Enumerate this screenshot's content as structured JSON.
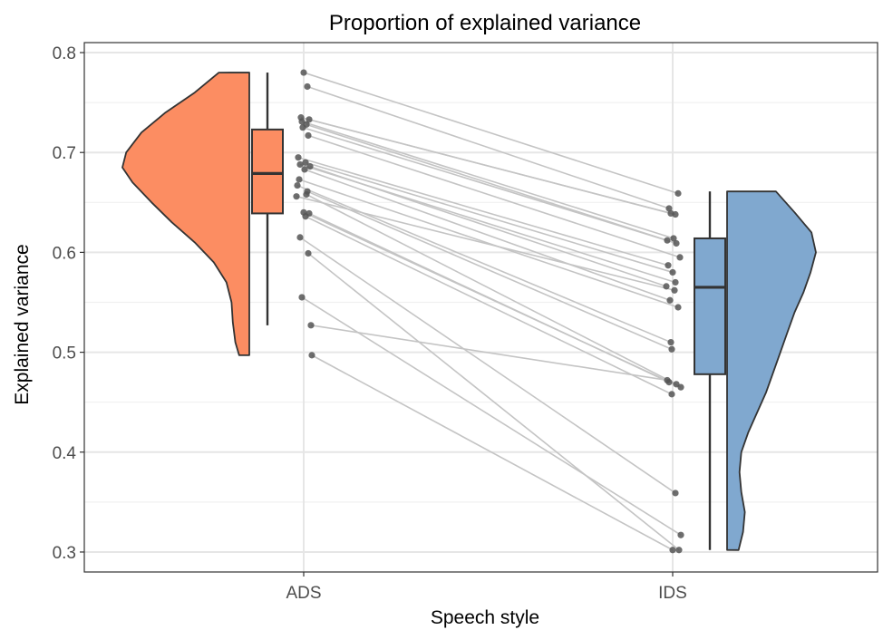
{
  "chart_data": {
    "type": "raincloud",
    "title": "Proportion of explained variance",
    "xlabel": "Speech style",
    "ylabel": "Explained variance",
    "categories": [
      "ADS",
      "IDS"
    ],
    "ylim": [
      0.28,
      0.81
    ],
    "yticks": [
      0.3,
      0.4,
      0.5,
      0.6,
      0.7,
      0.8
    ],
    "ytick_labels": [
      "0.3",
      "0.4",
      "0.5",
      "0.6",
      "0.7",
      "0.8"
    ],
    "grid": true,
    "colors": {
      "ADS": "#FC8D62",
      "IDS": "#80A8CF",
      "outline": "#333333",
      "points": "#555555",
      "lines": "#c4c4c4"
    },
    "boxplots": [
      {
        "category": "ADS",
        "min": 0.527,
        "q1": 0.639,
        "median": 0.679,
        "q3": 0.723,
        "max": 0.78
      },
      {
        "category": "IDS",
        "min": 0.302,
        "q1": 0.478,
        "median": 0.565,
        "q3": 0.614,
        "max": 0.661
      }
    ],
    "density": [
      {
        "category": "ADS",
        "side": "left",
        "points": [
          [
            0.497,
            0.08
          ],
          [
            0.51,
            0.11
          ],
          [
            0.53,
            0.13
          ],
          [
            0.55,
            0.14
          ],
          [
            0.57,
            0.18
          ],
          [
            0.59,
            0.28
          ],
          [
            0.61,
            0.43
          ],
          [
            0.63,
            0.61
          ],
          [
            0.65,
            0.77
          ],
          [
            0.67,
            0.92
          ],
          [
            0.685,
            1.0
          ],
          [
            0.7,
            0.97
          ],
          [
            0.72,
            0.85
          ],
          [
            0.74,
            0.66
          ],
          [
            0.76,
            0.43
          ],
          [
            0.78,
            0.24
          ]
        ]
      },
      {
        "category": "IDS",
        "side": "right",
        "points": [
          [
            0.302,
            0.13
          ],
          [
            0.32,
            0.18
          ],
          [
            0.34,
            0.2
          ],
          [
            0.36,
            0.16
          ],
          [
            0.38,
            0.14
          ],
          [
            0.4,
            0.16
          ],
          [
            0.42,
            0.24
          ],
          [
            0.44,
            0.34
          ],
          [
            0.46,
            0.44
          ],
          [
            0.48,
            0.52
          ],
          [
            0.5,
            0.6
          ],
          [
            0.52,
            0.68
          ],
          [
            0.54,
            0.76
          ],
          [
            0.56,
            0.86
          ],
          [
            0.58,
            0.94
          ],
          [
            0.6,
            1.0
          ],
          [
            0.62,
            0.95
          ],
          [
            0.64,
            0.76
          ],
          [
            0.661,
            0.55
          ]
        ]
      }
    ],
    "pairs": [
      [
        0.78,
        0.659
      ],
      [
        0.766,
        0.644
      ],
      [
        0.735,
        0.638
      ],
      [
        0.733,
        0.639
      ],
      [
        0.731,
        0.614
      ],
      [
        0.728,
        0.612
      ],
      [
        0.725,
        0.609
      ],
      [
        0.717,
        0.595
      ],
      [
        0.695,
        0.587
      ],
      [
        0.69,
        0.58
      ],
      [
        0.688,
        0.57
      ],
      [
        0.686,
        0.566
      ],
      [
        0.683,
        0.552
      ],
      [
        0.673,
        0.545
      ],
      [
        0.667,
        0.51
      ],
      [
        0.661,
        0.503
      ],
      [
        0.658,
        0.468
      ],
      [
        0.656,
        0.562
      ],
      [
        0.64,
        0.465
      ],
      [
        0.639,
        0.47
      ],
      [
        0.636,
        0.458
      ],
      [
        0.615,
        0.359
      ],
      [
        0.599,
        0.302
      ],
      [
        0.555,
        0.317
      ],
      [
        0.527,
        0.472
      ],
      [
        0.497,
        0.302
      ]
    ]
  }
}
